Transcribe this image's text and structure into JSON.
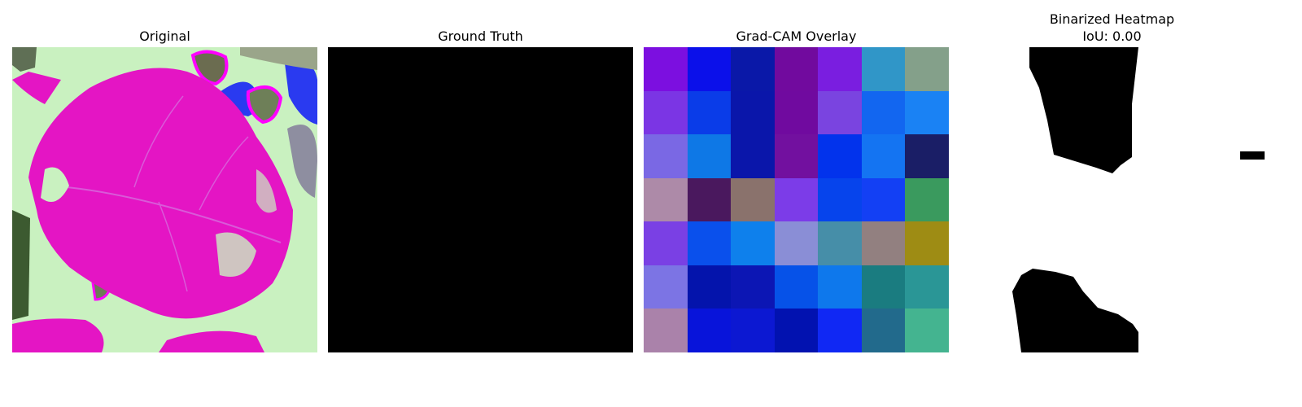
{
  "panels": {
    "original": {
      "title": "Original"
    },
    "ground_truth": {
      "title": "Ground Truth"
    },
    "gradcam": {
      "title": "Grad-CAM Overlay",
      "cells": [
        [
          "#7c0fe0",
          "#0b10ea",
          "#0a18a8",
          "#710a9e",
          "#7a1ee0",
          "#3096c8",
          "#84a08a"
        ],
        [
          "#7b35e4",
          "#0a3ce8",
          "#0a16aa",
          "#700a9f",
          "#7a44e0",
          "#1266f0",
          "#1a82f4"
        ],
        [
          "#7a68e4",
          "#0e78e6",
          "#0a16aa",
          "#72109f",
          "#0233ec",
          "#1474f2",
          "#1a1e66"
        ],
        [
          "#ad8aa8",
          "#4a185e",
          "#8a726c",
          "#7c3ce8",
          "#0644ec",
          "#1340f4",
          "#3a9a5e"
        ],
        [
          "#7a40e4",
          "#0a50ec",
          "#0e80ec",
          "#8a8ed6",
          "#468ea8",
          "#928080",
          "#9e8c14"
        ],
        [
          "#7c74e4",
          "#0414ac",
          "#0c16b4",
          "#0652e8",
          "#0e78ec",
          "#1a7c80",
          "#2a9696"
        ],
        [
          "#aa82aa",
          "#0814da",
          "#0c18d2",
          "#0212b0",
          "#1028f4",
          "#226a8c",
          "#44b490"
        ]
      ]
    },
    "binarized": {
      "title_line1": "Binarized Heatmap",
      "title_line2": "IoU: 0.00"
    }
  },
  "colors": {
    "leaf_magenta": "#e415c4",
    "background_pale_green": "#c9f1c0",
    "mask_black": "#000000",
    "mask_white": "#ffffff"
  }
}
